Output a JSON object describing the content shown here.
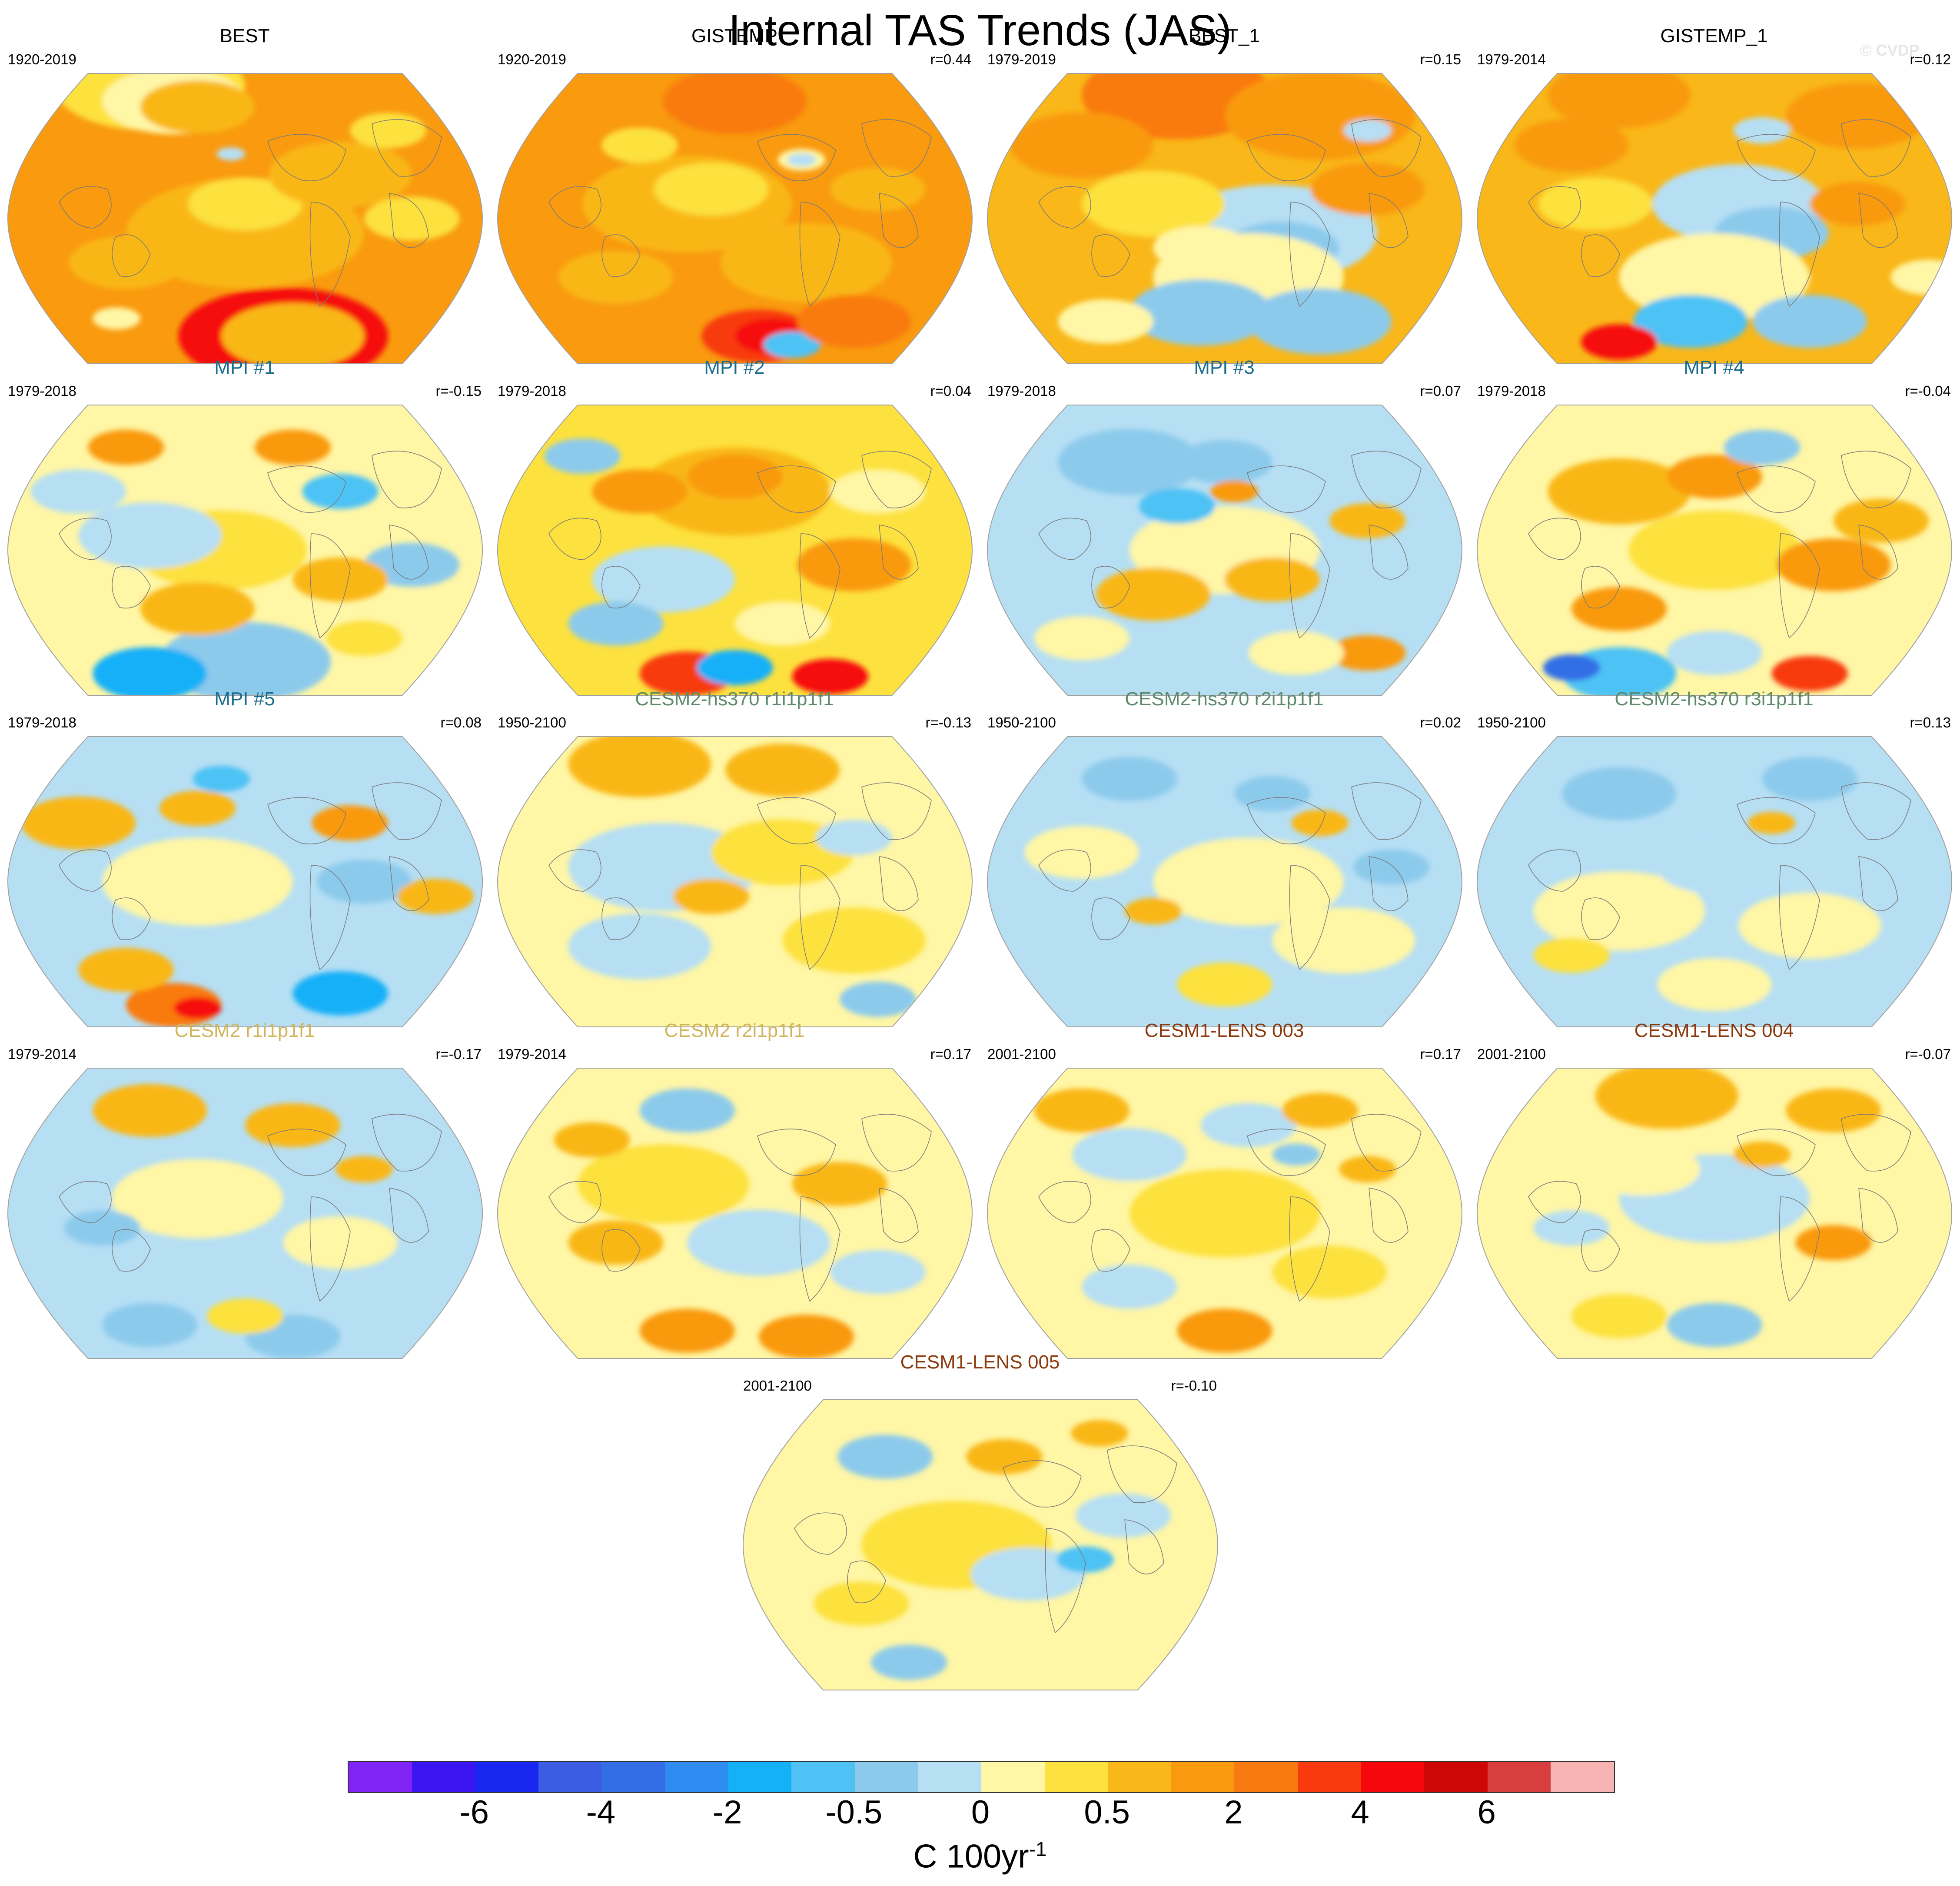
{
  "title": "Internal TAS Trends (JAS)",
  "credit": "© CVDP",
  "colors": {
    "bins": [
      "#7f24f4",
      "#3a14f1",
      "#1827f0",
      "#3c5ce4",
      "#336ee6",
      "#2e8cf1",
      "#14b0f8",
      "#4ec2f5",
      "#8ccaec",
      "#b6dff4",
      "#fff6a6",
      "#fde13e",
      "#f9b719",
      "#f99a0f",
      "#f97a10",
      "#f83a0e",
      "#f6070c",
      "#cd0606",
      "#d93e3e",
      "#f8b3b3"
    ],
    "land_outline": "#7a7a7a",
    "map_border": "#a0a0a0",
    "title_obs": "#000000",
    "title_mpi": "#1c6c8e",
    "title_cesm2hs": "#5d8a6a",
    "title_cesm2": "#d0b55a",
    "title_cesm1": "#8b3a0e"
  },
  "panels": [
    {
      "title": "BEST",
      "period": "1920-2019",
      "corr": "",
      "group": "obs",
      "base": 13,
      "patches": [
        [
          11,
          0.3,
          0.05,
          0.2
        ],
        [
          10,
          0.35,
          0.1,
          0.15
        ],
        [
          12,
          0.5,
          0.55,
          0.25
        ],
        [
          11,
          0.5,
          0.45,
          0.12
        ],
        [
          16,
          0.58,
          0.9,
          0.22
        ],
        [
          15,
          0.58,
          0.88,
          0.1
        ],
        [
          12,
          0.6,
          0.9,
          0.15
        ],
        [
          10,
          0.23,
          0.84,
          0.05
        ],
        [
          9,
          0.47,
          0.28,
          0.03
        ],
        [
          12,
          0.7,
          0.35,
          0.15
        ],
        [
          12,
          0.25,
          0.65,
          0.12
        ],
        [
          11,
          0.85,
          0.5,
          0.1
        ],
        [
          12,
          0.4,
          0.12,
          0.12
        ],
        [
          11,
          0.8,
          0.2,
          0.08
        ]
      ]
    },
    {
      "title": "GISTEMP",
      "period": "1920-2019",
      "corr": "r=0.44",
      "group": "obs",
      "base": 13,
      "patches": [
        [
          12,
          0.4,
          0.45,
          0.22
        ],
        [
          11,
          0.45,
          0.4,
          0.12
        ],
        [
          12,
          0.65,
          0.65,
          0.18
        ],
        [
          10,
          0.64,
          0.3,
          0.05
        ],
        [
          9,
          0.64,
          0.3,
          0.03
        ],
        [
          15,
          0.55,
          0.9,
          0.12
        ],
        [
          16,
          0.58,
          0.9,
          0.08
        ],
        [
          7,
          0.62,
          0.93,
          0.06
        ],
        [
          14,
          0.75,
          0.85,
          0.12
        ],
        [
          12,
          0.25,
          0.7,
          0.12
        ],
        [
          12,
          0.8,
          0.4,
          0.1
        ],
        [
          14,
          0.5,
          0.1,
          0.15
        ],
        [
          11,
          0.3,
          0.25,
          0.08
        ]
      ]
    },
    {
      "title": "BEST_1",
      "period": "1979-2019",
      "corr": "r=0.15",
      "group": "obs",
      "base": 12,
      "patches": [
        [
          14,
          0.4,
          0.08,
          0.2
        ],
        [
          13,
          0.7,
          0.15,
          0.2
        ],
        [
          9,
          0.6,
          0.55,
          0.22
        ],
        [
          8,
          0.62,
          0.6,
          0.12
        ],
        [
          10,
          0.55,
          0.7,
          0.2
        ],
        [
          8,
          0.45,
          0.82,
          0.15
        ],
        [
          8,
          0.7,
          0.85,
          0.15
        ],
        [
          11,
          0.35,
          0.45,
          0.15
        ],
        [
          13,
          0.2,
          0.25,
          0.15
        ],
        [
          13,
          0.8,
          0.4,
          0.12
        ],
        [
          10,
          0.25,
          0.85,
          0.1
        ],
        [
          9,
          0.8,
          0.2,
          0.05
        ],
        [
          10,
          0.45,
          0.6,
          0.1
        ]
      ]
    },
    {
      "title": "GISTEMP_1",
      "period": "1979-2014",
      "corr": "r=0.12",
      "group": "obs",
      "base": 12,
      "patches": [
        [
          13,
          0.3,
          0.08,
          0.15
        ],
        [
          13,
          0.8,
          0.15,
          0.15
        ],
        [
          9,
          0.55,
          0.45,
          0.18
        ],
        [
          8,
          0.62,
          0.55,
          0.12
        ],
        [
          10,
          0.5,
          0.7,
          0.2
        ],
        [
          7,
          0.45,
          0.85,
          0.12
        ],
        [
          8,
          0.7,
          0.85,
          0.12
        ],
        [
          11,
          0.25,
          0.45,
          0.12
        ],
        [
          13,
          0.2,
          0.25,
          0.12
        ],
        [
          13,
          0.8,
          0.45,
          0.1
        ],
        [
          16,
          0.3,
          0.92,
          0.08
        ],
        [
          9,
          0.6,
          0.2,
          0.06
        ],
        [
          10,
          0.95,
          0.7,
          0.08
        ]
      ]
    },
    {
      "title": "MPI #1",
      "period": "1979-2018",
      "corr": "r=-0.15",
      "group": "mpi",
      "base": 10,
      "patches": [
        [
          11,
          0.45,
          0.5,
          0.18
        ],
        [
          9,
          0.3,
          0.45,
          0.15
        ],
        [
          8,
          0.5,
          0.88,
          0.18
        ],
        [
          6,
          0.3,
          0.92,
          0.12
        ],
        [
          12,
          0.4,
          0.7,
          0.12
        ],
        [
          13,
          0.25,
          0.15,
          0.08
        ],
        [
          13,
          0.6,
          0.15,
          0.08
        ],
        [
          7,
          0.7,
          0.3,
          0.08
        ],
        [
          8,
          0.85,
          0.55,
          0.1
        ],
        [
          12,
          0.7,
          0.6,
          0.1
        ],
        [
          9,
          0.15,
          0.3,
          0.1
        ],
        [
          11,
          0.75,
          0.8,
          0.08
        ]
      ]
    },
    {
      "title": "MPI #2",
      "period": "1979-2018",
      "corr": "r=0.04",
      "group": "mpi",
      "base": 11,
      "patches": [
        [
          12,
          0.5,
          0.3,
          0.2
        ],
        [
          13,
          0.5,
          0.25,
          0.1
        ],
        [
          9,
          0.35,
          0.6,
          0.15
        ],
        [
          8,
          0.25,
          0.75,
          0.1
        ],
        [
          13,
          0.75,
          0.55,
          0.12
        ],
        [
          15,
          0.4,
          0.92,
          0.1
        ],
        [
          6,
          0.5,
          0.9,
          0.08
        ],
        [
          16,
          0.7,
          0.93,
          0.08
        ],
        [
          8,
          0.18,
          0.18,
          0.08
        ],
        [
          10,
          0.8,
          0.3,
          0.1
        ],
        [
          13,
          0.3,
          0.3,
          0.1
        ],
        [
          10,
          0.6,
          0.75,
          0.1
        ]
      ]
    },
    {
      "title": "MPI #3",
      "period": "1979-2018",
      "corr": "r=0.07",
      "group": "mpi",
      "base": 9,
      "patches": [
        [
          10,
          0.5,
          0.5,
          0.2
        ],
        [
          8,
          0.3,
          0.2,
          0.15
        ],
        [
          8,
          0.5,
          0.2,
          0.1
        ],
        [
          12,
          0.35,
          0.65,
          0.12
        ],
        [
          12,
          0.6,
          0.6,
          0.1
        ],
        [
          13,
          0.8,
          0.85,
          0.08
        ],
        [
          7,
          0.4,
          0.35,
          0.08
        ],
        [
          10,
          0.2,
          0.8,
          0.1
        ],
        [
          13,
          0.52,
          0.3,
          0.05
        ],
        [
          12,
          0.8,
          0.4,
          0.08
        ],
        [
          10,
          0.65,
          0.85,
          0.1
        ]
      ]
    },
    {
      "title": "MPI #4",
      "period": "1979-2018",
      "corr": "r=-0.04",
      "group": "mpi",
      "base": 10,
      "patches": [
        [
          11,
          0.5,
          0.5,
          0.18
        ],
        [
          12,
          0.3,
          0.3,
          0.15
        ],
        [
          13,
          0.5,
          0.25,
          0.1
        ],
        [
          7,
          0.3,
          0.92,
          0.12
        ],
        [
          4,
          0.2,
          0.9,
          0.06
        ],
        [
          15,
          0.7,
          0.92,
          0.08
        ],
        [
          13,
          0.75,
          0.55,
          0.12
        ],
        [
          13,
          0.3,
          0.7,
          0.1
        ],
        [
          8,
          0.6,
          0.15,
          0.08
        ],
        [
          12,
          0.85,
          0.4,
          0.1
        ],
        [
          9,
          0.5,
          0.85,
          0.1
        ]
      ]
    },
    {
      "title": "MPI #5",
      "period": "1979-2018",
      "corr": "r=0.08",
      "group": "mpi",
      "base": 9,
      "patches": [
        [
          10,
          0.4,
          0.5,
          0.2
        ],
        [
          12,
          0.15,
          0.3,
          0.12
        ],
        [
          12,
          0.4,
          0.25,
          0.08
        ],
        [
          14,
          0.35,
          0.92,
          0.1
        ],
        [
          16,
          0.4,
          0.93,
          0.05
        ],
        [
          6,
          0.7,
          0.88,
          0.1
        ],
        [
          12,
          0.25,
          0.8,
          0.1
        ],
        [
          13,
          0.72,
          0.3,
          0.08
        ],
        [
          8,
          0.75,
          0.5,
          0.1
        ],
        [
          12,
          0.9,
          0.55,
          0.08
        ],
        [
          7,
          0.45,
          0.15,
          0.06
        ]
      ]
    },
    {
      "title": "CESM2-hs370 r1i1p1f1",
      "period": "1950-2100",
      "corr": "r=-0.13",
      "group": "cesm2hs",
      "base": 10,
      "patches": [
        [
          9,
          0.35,
          0.45,
          0.2
        ],
        [
          11,
          0.6,
          0.4,
          0.15
        ],
        [
          12,
          0.3,
          0.1,
          0.15
        ],
        [
          12,
          0.6,
          0.12,
          0.12
        ],
        [
          9,
          0.3,
          0.72,
          0.15
        ],
        [
          11,
          0.75,
          0.7,
          0.15
        ],
        [
          10,
          0.5,
          0.9,
          0.12
        ],
        [
          8,
          0.8,
          0.9,
          0.08
        ],
        [
          12,
          0.45,
          0.55,
          0.08
        ],
        [
          9,
          0.75,
          0.35,
          0.08
        ]
      ]
    },
    {
      "title": "CESM2-hs370 r2i1p1f1",
      "period": "1950-2100",
      "corr": "r=0.02",
      "group": "cesm2hs",
      "base": 9,
      "patches": [
        [
          10,
          0.55,
          0.5,
          0.2
        ],
        [
          10,
          0.2,
          0.4,
          0.12
        ],
        [
          10,
          0.75,
          0.7,
          0.15
        ],
        [
          8,
          0.3,
          0.15,
          0.1
        ],
        [
          8,
          0.6,
          0.2,
          0.08
        ],
        [
          12,
          0.7,
          0.3,
          0.06
        ],
        [
          11,
          0.5,
          0.85,
          0.1
        ],
        [
          12,
          0.35,
          0.6,
          0.06
        ],
        [
          8,
          0.85,
          0.45,
          0.08
        ]
      ]
    },
    {
      "title": "CESM2-hs370 r3i1p1f1",
      "period": "1950-2100",
      "corr": "r=0.13",
      "group": "cesm2hs",
      "base": 9,
      "patches": [
        [
          10,
          0.3,
          0.6,
          0.18
        ],
        [
          10,
          0.7,
          0.65,
          0.15
        ],
        [
          8,
          0.3,
          0.2,
          0.12
        ],
        [
          8,
          0.7,
          0.15,
          0.1
        ],
        [
          12,
          0.62,
          0.3,
          0.05
        ],
        [
          10,
          0.5,
          0.85,
          0.12
        ],
        [
          9,
          0.5,
          0.45,
          0.12
        ],
        [
          11,
          0.2,
          0.75,
          0.08
        ]
      ]
    },
    {
      "title": "CESM2 r1i1p1f1",
      "period": "1979-2014",
      "corr": "r=-0.17",
      "group": "cesm2",
      "base": 9,
      "patches": [
        [
          10,
          0.4,
          0.45,
          0.18
        ],
        [
          12,
          0.3,
          0.15,
          0.12
        ],
        [
          12,
          0.6,
          0.2,
          0.1
        ],
        [
          10,
          0.7,
          0.6,
          0.12
        ],
        [
          8,
          0.3,
          0.88,
          0.1
        ],
        [
          8,
          0.6,
          0.92,
          0.1
        ],
        [
          11,
          0.5,
          0.85,
          0.08
        ],
        [
          8,
          0.2,
          0.55,
          0.08
        ],
        [
          12,
          0.75,
          0.35,
          0.06
        ]
      ]
    },
    {
      "title": "CESM2 r2i1p1f1",
      "period": "1979-2014",
      "corr": "r=0.17",
      "group": "cesm2",
      "base": 10,
      "patches": [
        [
          11,
          0.35,
          0.4,
          0.18
        ],
        [
          12,
          0.25,
          0.6,
          0.1
        ],
        [
          12,
          0.72,
          0.4,
          0.1
        ],
        [
          9,
          0.55,
          0.6,
          0.15
        ],
        [
          13,
          0.4,
          0.9,
          0.1
        ],
        [
          13,
          0.65,
          0.92,
          0.1
        ],
        [
          8,
          0.4,
          0.15,
          0.1
        ],
        [
          12,
          0.2,
          0.25,
          0.08
        ],
        [
          9,
          0.8,
          0.7,
          0.1
        ]
      ]
    },
    {
      "title": "CESM1-LENS 003",
      "period": "2001-2100",
      "corr": "r=0.17",
      "group": "cesm1",
      "base": 10,
      "patches": [
        [
          11,
          0.5,
          0.5,
          0.2
        ],
        [
          9,
          0.3,
          0.3,
          0.12
        ],
        [
          9,
          0.55,
          0.2,
          0.1
        ],
        [
          12,
          0.2,
          0.15,
          0.1
        ],
        [
          12,
          0.7,
          0.15,
          0.08
        ],
        [
          13,
          0.5,
          0.9,
          0.1
        ],
        [
          9,
          0.3,
          0.75,
          0.1
        ],
        [
          11,
          0.72,
          0.7,
          0.12
        ],
        [
          8,
          0.65,
          0.3,
          0.05
        ],
        [
          12,
          0.8,
          0.35,
          0.06
        ]
      ]
    },
    {
      "title": "CESM1-LENS 004",
      "period": "2001-2100",
      "corr": "r=-0.07",
      "group": "cesm1",
      "base": 10,
      "patches": [
        [
          9,
          0.5,
          0.45,
          0.2
        ],
        [
          12,
          0.4,
          0.1,
          0.15
        ],
        [
          12,
          0.75,
          0.15,
          0.1
        ],
        [
          10,
          0.35,
          0.35,
          0.12
        ],
        [
          13,
          0.75,
          0.6,
          0.08
        ],
        [
          8,
          0.5,
          0.88,
          0.1
        ],
        [
          11,
          0.3,
          0.85,
          0.1
        ],
        [
          9,
          0.2,
          0.55,
          0.08
        ],
        [
          12,
          0.6,
          0.3,
          0.06
        ]
      ]
    },
    {
      "title": "CESM1-LENS 005",
      "period": "2001-2100",
      "corr": "r=-0.10",
      "group": "cesm1",
      "base": 10,
      "patches": [
        [
          11,
          0.45,
          0.5,
          0.2
        ],
        [
          9,
          0.6,
          0.6,
          0.12
        ],
        [
          8,
          0.3,
          0.2,
          0.1
        ],
        [
          12,
          0.55,
          0.2,
          0.08
        ],
        [
          7,
          0.72,
          0.55,
          0.06
        ],
        [
          8,
          0.35,
          0.9,
          0.08
        ],
        [
          11,
          0.25,
          0.7,
          0.1
        ],
        [
          12,
          0.75,
          0.12,
          0.06
        ],
        [
          9,
          0.8,
          0.4,
          0.1
        ]
      ]
    }
  ],
  "colorbar": {
    "labels": [
      {
        "text": "-6",
        "index": 2
      },
      {
        "text": "-4",
        "index": 4
      },
      {
        "text": "-2",
        "index": 6
      },
      {
        "text": "-0.5",
        "index": 8
      },
      {
        "text": "0",
        "index": 10
      },
      {
        "text": "0.5",
        "index": 12
      },
      {
        "text": "2",
        "index": 14
      },
      {
        "text": "4",
        "index": 16
      },
      {
        "text": "6",
        "index": 18
      }
    ],
    "units": "C 100yr",
    "units_exp": "-1"
  }
}
